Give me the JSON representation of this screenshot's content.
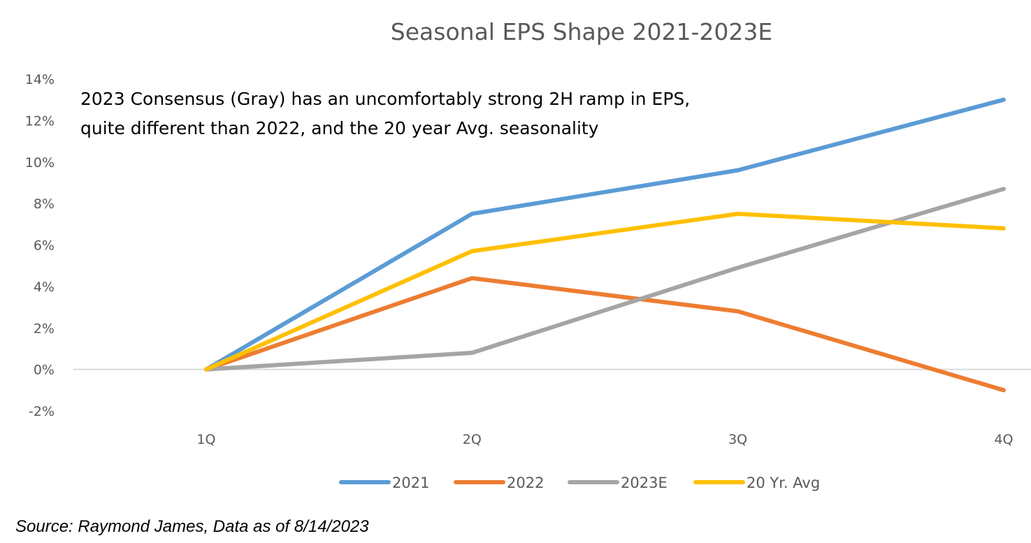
{
  "chart_data": {
    "type": "line",
    "title": "Seasonal EPS Shape 2021-2023E",
    "xlabel": "",
    "ylabel": "",
    "categories": [
      "1Q",
      "2Q",
      "3Q",
      "4Q"
    ],
    "ylim": [
      -0.02,
      0.14
    ],
    "yticks": [
      -0.02,
      0,
      0.02,
      0.04,
      0.06,
      0.08,
      0.1,
      0.12,
      0.14
    ],
    "ytick_labels": [
      "-2%",
      "0%",
      "2%",
      "4%",
      "6%",
      "8%",
      "10%",
      "12%",
      "14%"
    ],
    "grid": false,
    "legend_position": "bottom",
    "series": [
      {
        "name": "2021",
        "color": "#5B9BD5",
        "values": [
          0.0,
          0.075,
          0.096,
          0.13
        ]
      },
      {
        "name": "2022",
        "color": "#ED7D31",
        "values": [
          0.0,
          0.044,
          0.028,
          -0.01
        ]
      },
      {
        "name": "2023E",
        "color": "#A5A5A5",
        "values": [
          0.0,
          0.008,
          0.049,
          0.087
        ]
      },
      {
        "name": "20 Yr. Avg",
        "color": "#FFC000",
        "values": [
          0.0,
          0.057,
          0.075,
          0.068
        ]
      }
    ],
    "annotations": [
      "2023 Consensus (Gray) has an uncomfortably strong 2H ramp in EPS,",
      "quite different than 2022, and the 20 year Avg. seasonality"
    ]
  },
  "footer": {
    "source": "Source: Raymond James, Data as of 8/14/2023"
  }
}
